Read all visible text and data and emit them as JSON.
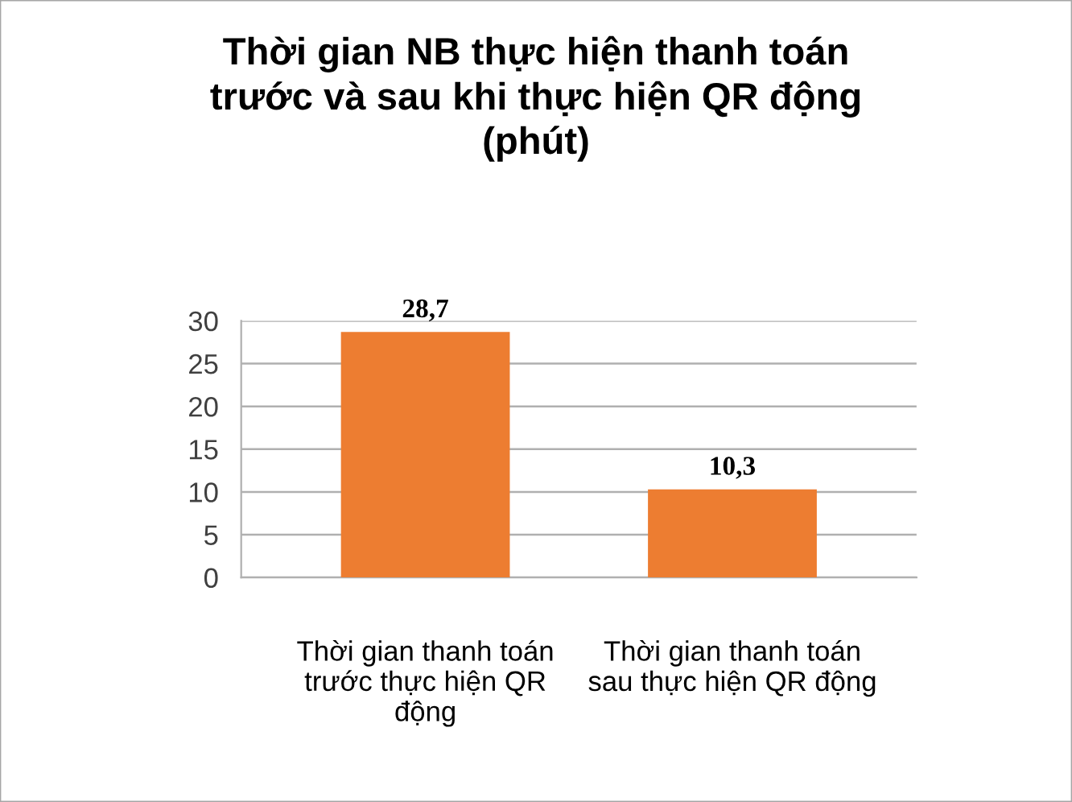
{
  "chart_data": {
    "type": "bar",
    "title": "Thời gian NB thực hiện thanh toán\ntrước và sau khi thực hiện QR động\n(phút)",
    "categories": [
      "Thời gian thanh toán\ntrước thực hiện QR\nđộng",
      "Thời gian thanh toán\nsau thực hiện QR động"
    ],
    "values": [
      28.7,
      10.3
    ],
    "color": "#ed7d31",
    "value_labels": [
      "28,7",
      "10,3"
    ],
    "ylim": [
      0,
      30
    ],
    "yticks": [
      0,
      5,
      10,
      15,
      20,
      25,
      30
    ],
    "grid": "y",
    "legend": false
  }
}
